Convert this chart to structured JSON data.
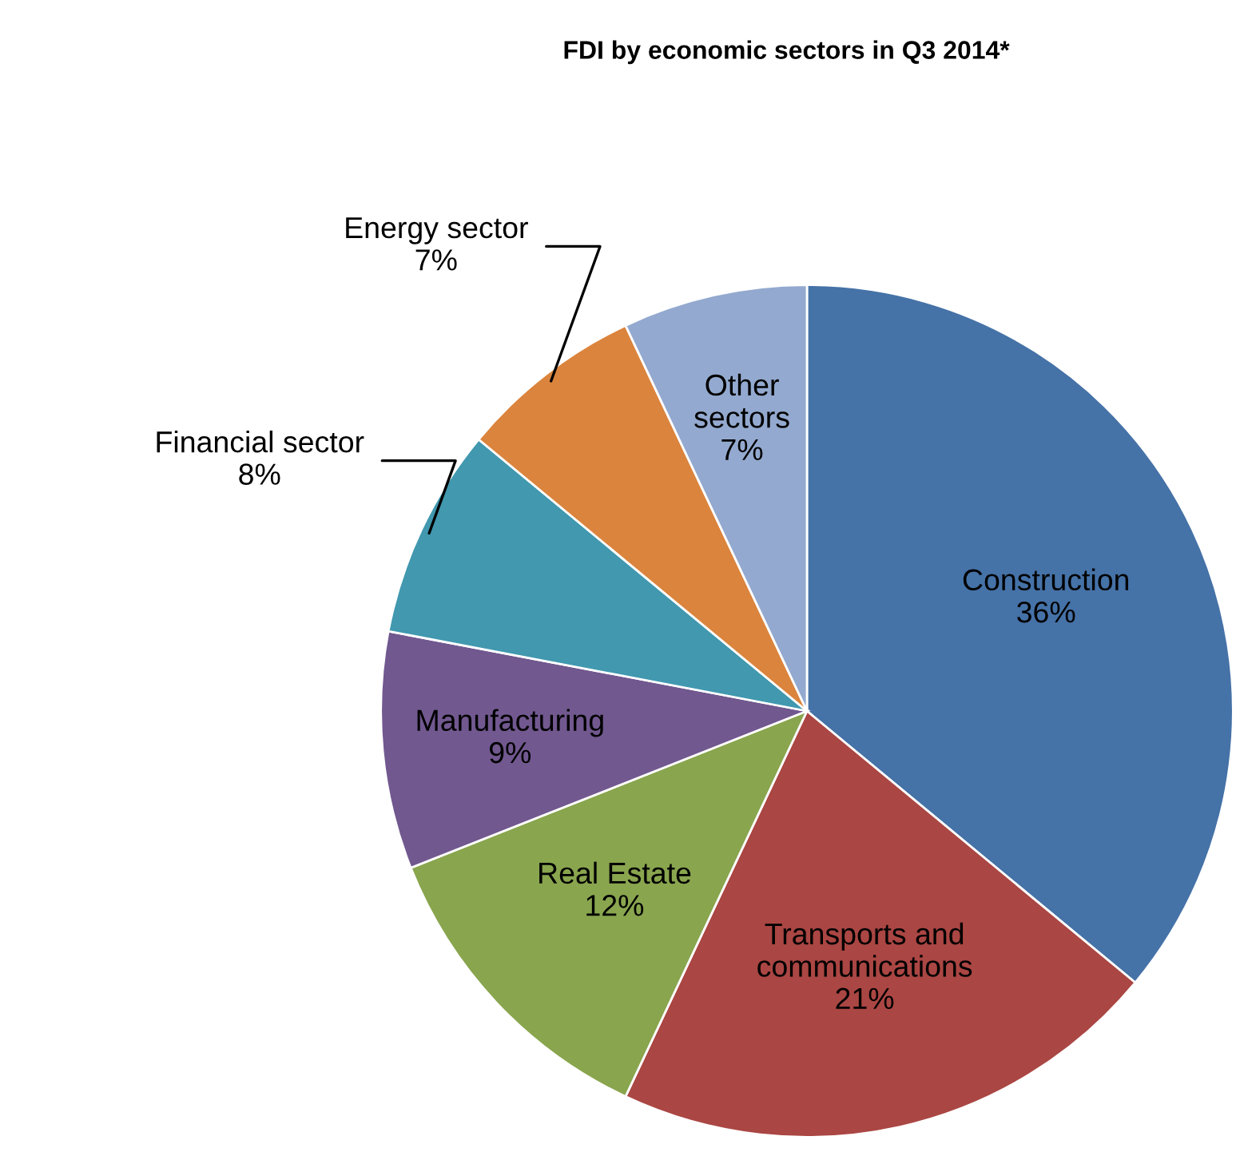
{
  "chart_data": {
    "type": "pie",
    "title": "FDI by economic sectors in Q3 2014*",
    "categories": [
      "Construction",
      "Transports and communications",
      "Real Estate",
      "Manufacturing",
      "Financial sector",
      "Energy sector",
      "Other sectors"
    ],
    "values": [
      36,
      21,
      12,
      9,
      8,
      7,
      7
    ],
    "colors": [
      "#4572a7",
      "#aa4643",
      "#89a54e",
      "#71588f",
      "#4198af",
      "#db843d",
      "#93a9cf"
    ],
    "value_labels": [
      "36%",
      "21%",
      "12%",
      "9%",
      "8%",
      "7%",
      "7%"
    ],
    "legend": false
  }
}
